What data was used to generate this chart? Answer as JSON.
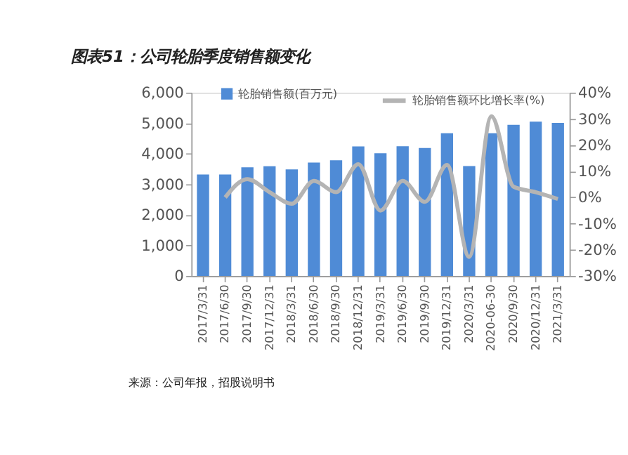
{
  "chart_data": {
    "type": "bar",
    "title": "图表51：公司轮胎季度销售额变化",
    "categories": [
      "2017/3/31",
      "2017/6/30",
      "2017/9/30",
      "2017/12/31",
      "2018/3/31",
      "2018/6/30",
      "2018/9/30",
      "2018/12/31",
      "2019/3/31",
      "2019/6/30",
      "2019/9/30",
      "2019/12/31",
      "2020/3/31",
      "2020-06-30",
      "2020/9/30",
      "2020/12/31",
      "2021/3/31"
    ],
    "series": [
      {
        "name": "轮胎销售额(百万元)",
        "color": "#4f8bd6",
        "values": [
          3320,
          3320,
          3560,
          3590,
          3490,
          3710,
          3790,
          4240,
          4020,
          4250,
          4190,
          4670,
          3600,
          4670,
          4950,
          5050,
          5010
        ]
      },
      {
        "name": "轮胎销售额环比增长率(%)",
        "type": "line",
        "axis": "y2",
        "color": "#b4b4b4",
        "values": [
          null,
          0,
          7,
          2,
          -2.4,
          6.3,
          2,
          12.7,
          -5,
          6.3,
          -1.7,
          12.4,
          -22.7,
          31,
          4.1,
          2,
          -0.6
        ]
      }
    ],
    "ylim": [
      0,
      6000
    ],
    "yticks": [
      {
        "value": 0,
        "label": "0"
      },
      {
        "value": 1000,
        "label": "1,000"
      },
      {
        "value": 2000,
        "label": "2,000"
      },
      {
        "value": 3000,
        "label": "3,000"
      },
      {
        "value": 4000,
        "label": "4,000"
      },
      {
        "value": 5000,
        "label": "5,000"
      },
      {
        "value": 6000,
        "label": "6,000"
      }
    ],
    "y2lim": [
      -30,
      40
    ],
    "y2ticks": [
      {
        "value": -30,
        "label": "-30%"
      },
      {
        "value": -20,
        "label": "-20%"
      },
      {
        "value": -10,
        "label": "-10%"
      },
      {
        "value": 0,
        "label": "0%"
      },
      {
        "value": 10,
        "label": "10%"
      },
      {
        "value": 20,
        "label": "20%"
      },
      {
        "value": 30,
        "label": "30%"
      },
      {
        "value": 40,
        "label": "40%"
      }
    ],
    "grid": false,
    "legend": "top",
    "annotations": [
      "来源：公司年报，招股说明书"
    ]
  }
}
